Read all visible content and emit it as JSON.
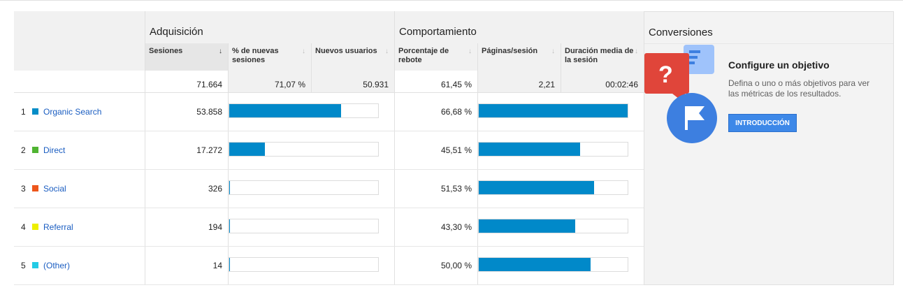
{
  "groups": {
    "acquisition": "Adquisición",
    "behavior": "Comportamiento",
    "conversions": "Conversiones"
  },
  "columns": {
    "sessions": "Sesiones",
    "pct_new_sessions": "% de nuevas sesiones",
    "new_users": "Nuevos usuarios",
    "bounce_rate": "Porcentaje de rebote",
    "pages_per_session": "Páginas/sesión",
    "avg_duration": "Duración media de la sesión"
  },
  "totals": {
    "sessions": "71.664",
    "pct_new_sessions": "71,07 %",
    "new_users": "50.931",
    "bounce_rate": "61,45 %",
    "pages_per_session": "2,21",
    "avg_duration": "00:02:46"
  },
  "rows": [
    {
      "index": "1",
      "channel": "Organic Search",
      "color": "#058dc7",
      "sessions": "53.858",
      "sessions_share": 0.7515,
      "bounce": "66,68 %",
      "bounce_share": 1.0
    },
    {
      "index": "2",
      "channel": "Direct",
      "color": "#50b432",
      "sessions": "17.272",
      "sessions_share": 0.241,
      "bounce": "45,51 %",
      "bounce_share": 0.6825
    },
    {
      "index": "3",
      "channel": "Social",
      "color": "#ed561b",
      "sessions": "326",
      "sessions_share": 0.0045,
      "bounce": "51,53 %",
      "bounce_share": 0.7728
    },
    {
      "index": "4",
      "channel": "Referral",
      "color": "#edef00",
      "sessions": "194",
      "sessions_share": 0.0027,
      "bounce": "43,30 %",
      "bounce_share": 0.6494
    },
    {
      "index": "5",
      "channel": "(Other)",
      "color": "#24cbe5",
      "sessions": "14",
      "sessions_share": 0.0002,
      "bounce": "50,00 %",
      "bounce_share": 0.7498
    }
  ],
  "icons": {
    "sort_active": "sort-descending-icon",
    "sort_inactive": "sort-icon",
    "illustration": "goal-flag-illustration-icon"
  },
  "conversions": {
    "title": "Configure un objetivo",
    "description": "Defina o uno o más objetivos para ver las métricas de los resultados.",
    "button": "INTRODUCCIÓN"
  }
}
